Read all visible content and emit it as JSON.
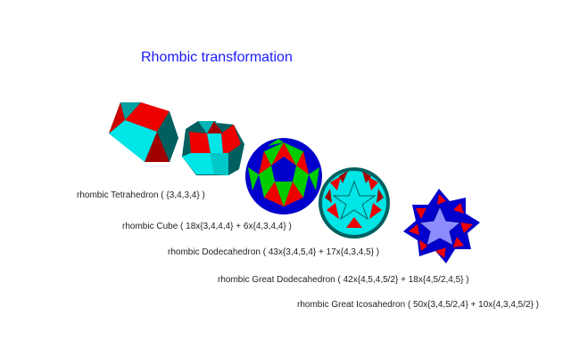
{
  "title": "Rhombic transformation",
  "colors": {
    "title": "#1a1aff",
    "cyan": "#00e5e5",
    "red": "#ee0000",
    "dark_red": "#a00000",
    "teal": "#006060",
    "green": "#00cc00",
    "blue": "#0000cc",
    "lavender": "#8c8cff"
  },
  "solids": [
    {
      "label": "rhombic Tetrahedron ( {3,4,3,4} )"
    },
    {
      "label": "rhombic Cube ( 18x{3,4,4,4} + 6x{4,3,4,4} )"
    },
    {
      "label": "rhombic Dodecahedron ( 43x{3,4,5,4} + 17x{4,3,4,5} )"
    },
    {
      "label": "rhombic Great Dodecahedron ( 42x{4,5,4,5/2} + 18x{4,5/2,4,5} )"
    },
    {
      "label": "rhombic Great Icosahedron ( 50x{3,4,5/2,4} + 10x{4,3,4,5/2} )"
    }
  ]
}
